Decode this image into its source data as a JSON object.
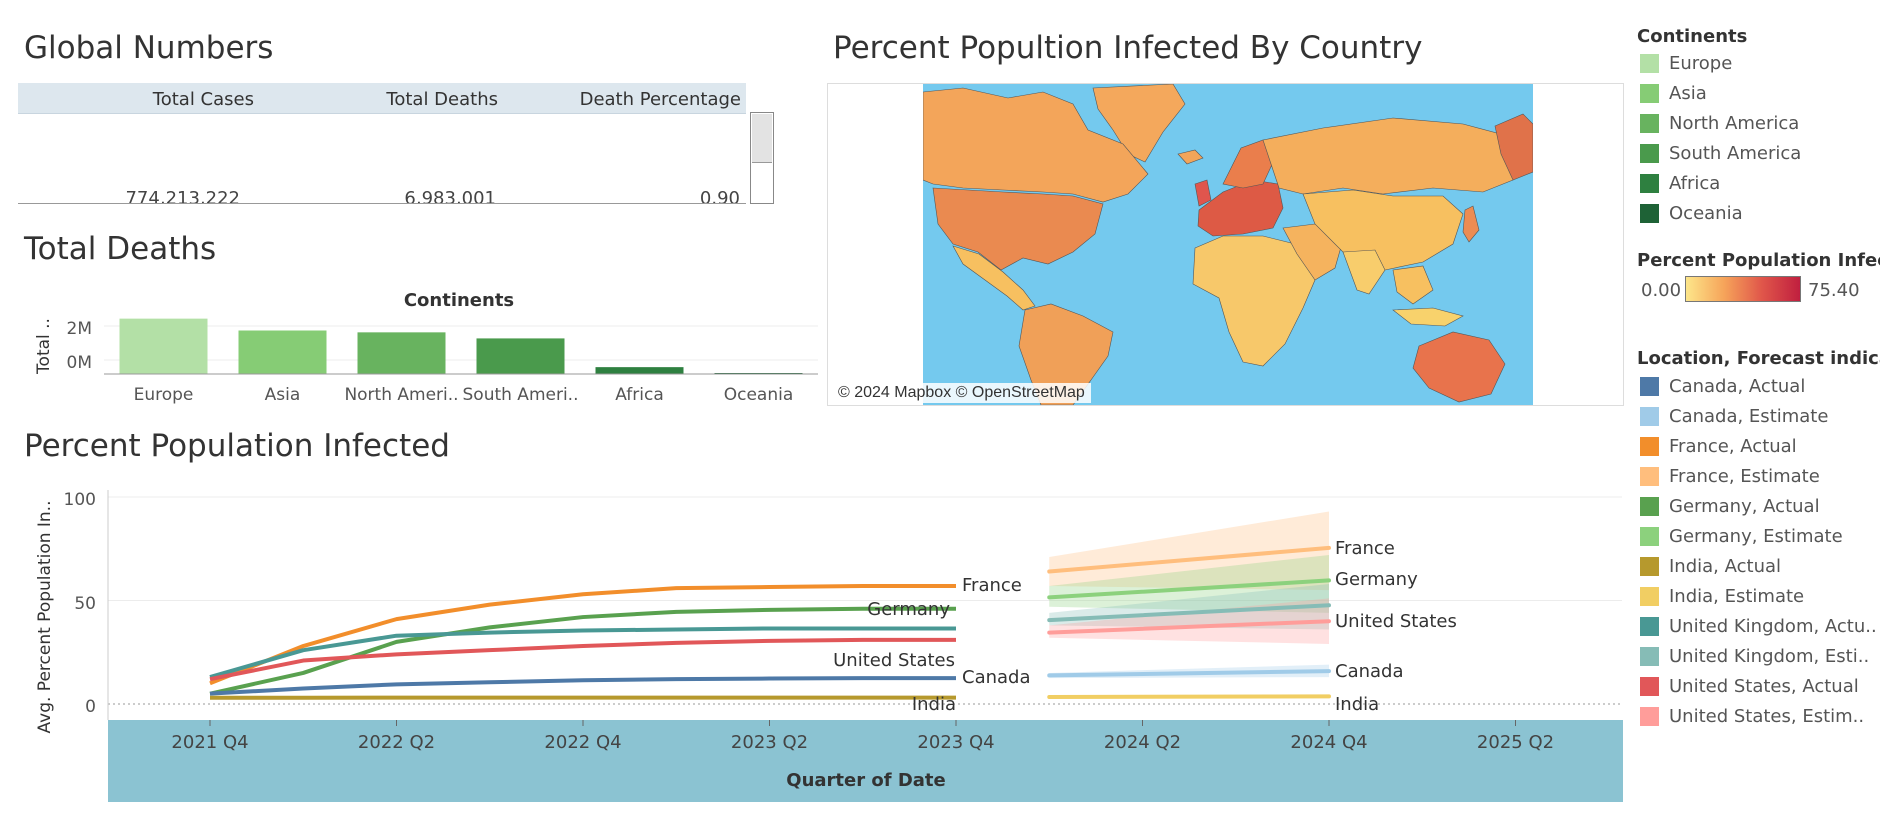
{
  "global_numbers": {
    "title": "Global Numbers",
    "headers": [
      "Total Cases",
      "Total Deaths",
      "Death Percentage"
    ],
    "values": [
      "774,213,222",
      "6,983,001",
      "0.90"
    ]
  },
  "total_deaths": {
    "title": "Total Deaths",
    "header": "Continents",
    "axis_title": "Total ..",
    "tick_labels": [
      "2M",
      "0M"
    ]
  },
  "map": {
    "title": "Percent Popultion Infected By Country",
    "attribution": "© 2024 Mapbox © OpenStreetMap"
  },
  "ppi": {
    "title": "Percent Population Infected",
    "ylabel": "Avg. Percent Population In..",
    "xlabel": "Quarter of Date",
    "y_ticks": [
      "100",
      "50",
      "0"
    ],
    "x_ticks": [
      "2021 Q4",
      "2022 Q2",
      "2022 Q4",
      "2023 Q2",
      "2023 Q4",
      "2024 Q2",
      "2024 Q4",
      "2025 Q2"
    ],
    "labels_actual": {
      "france": "France",
      "germany": "Germany",
      "us": "United States",
      "canada": "Canada",
      "india": "India"
    },
    "labels_forecast": {
      "france": "France",
      "germany": "Germany",
      "us": "United States",
      "canada": "Canada",
      "india": "India"
    }
  },
  "legends": {
    "continents_title": "Continents",
    "continents": [
      {
        "label": "Europe",
        "color": "#b3e0a6"
      },
      {
        "label": "Asia",
        "color": "#86cc75"
      },
      {
        "label": "North America",
        "color": "#68b35f"
      },
      {
        "label": "South America",
        "color": "#4a9a4c"
      },
      {
        "label": "Africa",
        "color": "#2e8040"
      },
      {
        "label": "Oceania",
        "color": "#1e6236"
      }
    ],
    "ppi_title": "Percent Population Infect..",
    "ppi_min": "0.00",
    "ppi_max": "75.40",
    "location_title": "Location, Forecast indicat..",
    "locations": [
      {
        "label": "Canada, Actual",
        "color": "#4e79a7"
      },
      {
        "label": "Canada, Estimate",
        "color": "#a0cbe8"
      },
      {
        "label": "France, Actual",
        "color": "#f28e2b"
      },
      {
        "label": "France, Estimate",
        "color": "#ffbe7d"
      },
      {
        "label": "Germany, Actual",
        "color": "#59a14f"
      },
      {
        "label": "Germany, Estimate",
        "color": "#8cd17d"
      },
      {
        "label": "India, Actual",
        "color": "#b6992d"
      },
      {
        "label": "India, Estimate",
        "color": "#f1ce63"
      },
      {
        "label": "United Kingdom, Actu..",
        "color": "#499894"
      },
      {
        "label": "United Kingdom, Esti..",
        "color": "#86bcb6"
      },
      {
        "label": "United States, Actual",
        "color": "#e15759"
      },
      {
        "label": "United States, Estim..",
        "color": "#ff9d9a"
      }
    ]
  },
  "chart_data": [
    {
      "type": "bar",
      "title": "Total Deaths",
      "header": "Continents",
      "categories": [
        "Europe",
        "Asia",
        "North Ameri..",
        "South Ameri..",
        "Africa",
        "Oceania"
      ],
      "values": [
        2100000,
        1650000,
        1580000,
        1350000,
        260000,
        30000
      ],
      "colors": [
        "#b3e0a6",
        "#86cc75",
        "#68b35f",
        "#4a9a4c",
        "#2e8040",
        "#1e6236"
      ],
      "ylim": [
        0,
        2200000
      ]
    },
    {
      "type": "line",
      "title": "Percent Population Infected",
      "xlabel": "Quarter of Date",
      "ylabel": "Avg. Percent Population In..",
      "ylim": [
        0,
        100
      ],
      "x": [
        "2021 Q4",
        "2022 Q1",
        "2022 Q2",
        "2022 Q3",
        "2022 Q4",
        "2023 Q1",
        "2023 Q2",
        "2023 Q3",
        "2023 Q4"
      ],
      "series": [
        {
          "name": "France, Actual",
          "color": "#f28e2b",
          "values": [
            10,
            28,
            41,
            48,
            53,
            56,
            56.5,
            57,
            57
          ]
        },
        {
          "name": "Germany, Actual",
          "color": "#59a14f",
          "values": [
            5,
            15,
            30,
            37,
            42,
            44.5,
            45.5,
            46,
            46
          ]
        },
        {
          "name": "United Kingdom, Actual",
          "color": "#499894",
          "values": [
            13,
            26,
            33,
            34.5,
            35.5,
            36,
            36.5,
            36.5,
            36.5
          ]
        },
        {
          "name": "United States, Actual",
          "color": "#e15759",
          "values": [
            12,
            21,
            24,
            26,
            28,
            29.5,
            30.5,
            31,
            31
          ]
        },
        {
          "name": "Canada, Actual",
          "color": "#4e79a7",
          "values": [
            5,
            7.5,
            9.5,
            10.5,
            11.5,
            12,
            12.3,
            12.5,
            12.5
          ]
        },
        {
          "name": "India, Actual",
          "color": "#b6992d",
          "values": [
            3,
            3,
            3.1,
            3.1,
            3.1,
            3.1,
            3.1,
            3.1,
            3.1
          ]
        }
      ],
      "forecast_x": [
        "2024 Q1",
        "2024 Q4"
      ],
      "forecast": [
        {
          "name": "France, Estimate",
          "color": "#ffbe7d",
          "values": [
            64,
            75.4
          ],
          "band": [
            [
              57,
              71
            ],
            [
              55,
              93
            ]
          ]
        },
        {
          "name": "Germany, Estimate",
          "color": "#8cd17d",
          "values": [
            51.5,
            59.7
          ],
          "band": [
            [
              47,
              57
            ],
            [
              44,
              72
            ]
          ]
        },
        {
          "name": "United Kingdom, Estimate",
          "color": "#86bcb6",
          "values": [
            40.5,
            47.7
          ],
          "band": [
            [
              38,
              44
            ],
            [
              36,
              58
            ]
          ]
        },
        {
          "name": "United States, Estimate",
          "color": "#ff9d9a",
          "values": [
            34.5,
            40
          ],
          "band": [
            [
              32,
              38
            ],
            [
              29,
              51
            ]
          ]
        },
        {
          "name": "Canada, Estimate",
          "color": "#a0cbe8",
          "values": [
            13.8,
            15.9
          ],
          "band": [
            [
              12.5,
              15
            ],
            [
              13,
              19
            ]
          ]
        },
        {
          "name": "India, Estimate",
          "color": "#f1ce63",
          "values": [
            3.4,
            3.7
          ],
          "band": [
            [
              3.1,
              3.7
            ],
            [
              3.1,
              4.2
            ]
          ]
        }
      ]
    }
  ]
}
